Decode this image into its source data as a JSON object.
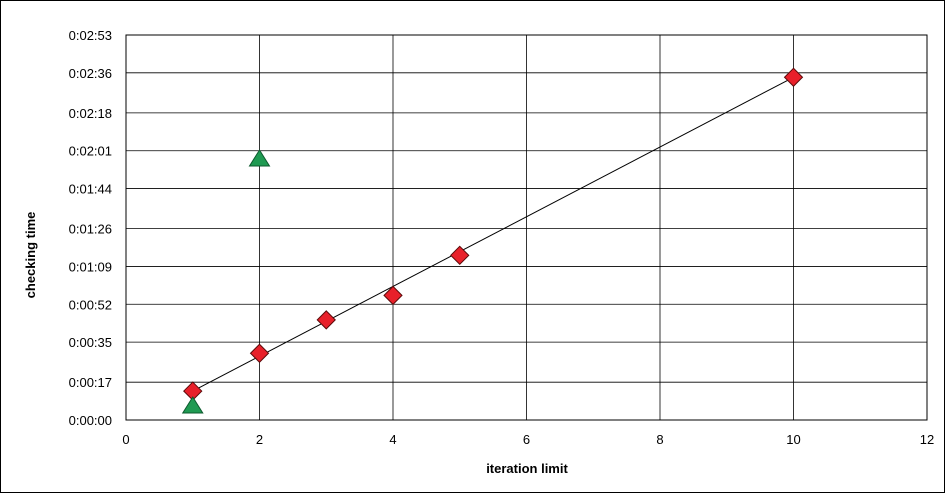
{
  "chart_data": {
    "type": "scatter",
    "title": "",
    "xlabel": "iteration limit",
    "ylabel": "checking time",
    "xlim": [
      0,
      12
    ],
    "ylim": [
      0,
      173
    ],
    "x_ticks": [
      0,
      2,
      4,
      6,
      8,
      10,
      12
    ],
    "x_tick_labels": [
      "0",
      "2",
      "4",
      "6",
      "8",
      "10",
      "12"
    ],
    "y_ticks": [
      0,
      17,
      35,
      52,
      69,
      86,
      104,
      121,
      138,
      156,
      173
    ],
    "y_tick_labels": [
      "0:00:00",
      "0:00:17",
      "0:00:35",
      "0:00:52",
      "0:01:09",
      "0:01:26",
      "0:01:44",
      "0:02:01",
      "0:02:18",
      "0:02:36",
      "0:02:53"
    ],
    "y_unit": "seconds",
    "grid": true,
    "legend": "none",
    "series": [
      {
        "marker": "diamond",
        "color": "#e8202a",
        "x": [
          1,
          2,
          3,
          4,
          5,
          10
        ],
        "y": [
          13,
          30,
          45,
          56,
          74,
          154
        ]
      },
      {
        "marker": "triangle",
        "color": "#1f9a52",
        "x": [
          1,
          2
        ],
        "y": [
          6,
          117
        ]
      }
    ],
    "trendline": {
      "color": "#000000",
      "x": [
        1,
        10
      ],
      "y": [
        13,
        154
      ]
    }
  }
}
